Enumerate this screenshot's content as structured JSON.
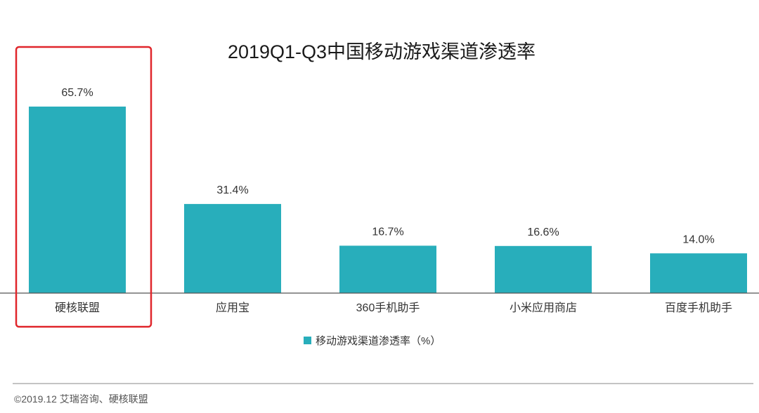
{
  "chart_data": {
    "type": "bar",
    "title": "2019Q1-Q3中国移动游戏渠道渗透率",
    "categories": [
      "硬核联盟",
      "应用宝",
      "360手机助手",
      "小米应用商店",
      "百度手机助手"
    ],
    "series": [
      {
        "name": "移动游戏渠道渗透率（%）",
        "values": [
          65.7,
          31.4,
          16.7,
          16.6,
          14.0
        ]
      }
    ],
    "value_labels": [
      "65.7%",
      "31.4%",
      "16.7%",
      "16.6%",
      "14.0%"
    ],
    "ylim": [
      0,
      75
    ],
    "grid": false,
    "legend_position": "bottom",
    "highlighted_category": "硬核联盟"
  },
  "colors": {
    "bar": "#28aebb",
    "highlight_box": "#e0262b",
    "axis": "#555555",
    "divider": "#888888"
  },
  "footer": {
    "source": "©2019.12  艾瑞咨询、硬核联盟"
  }
}
